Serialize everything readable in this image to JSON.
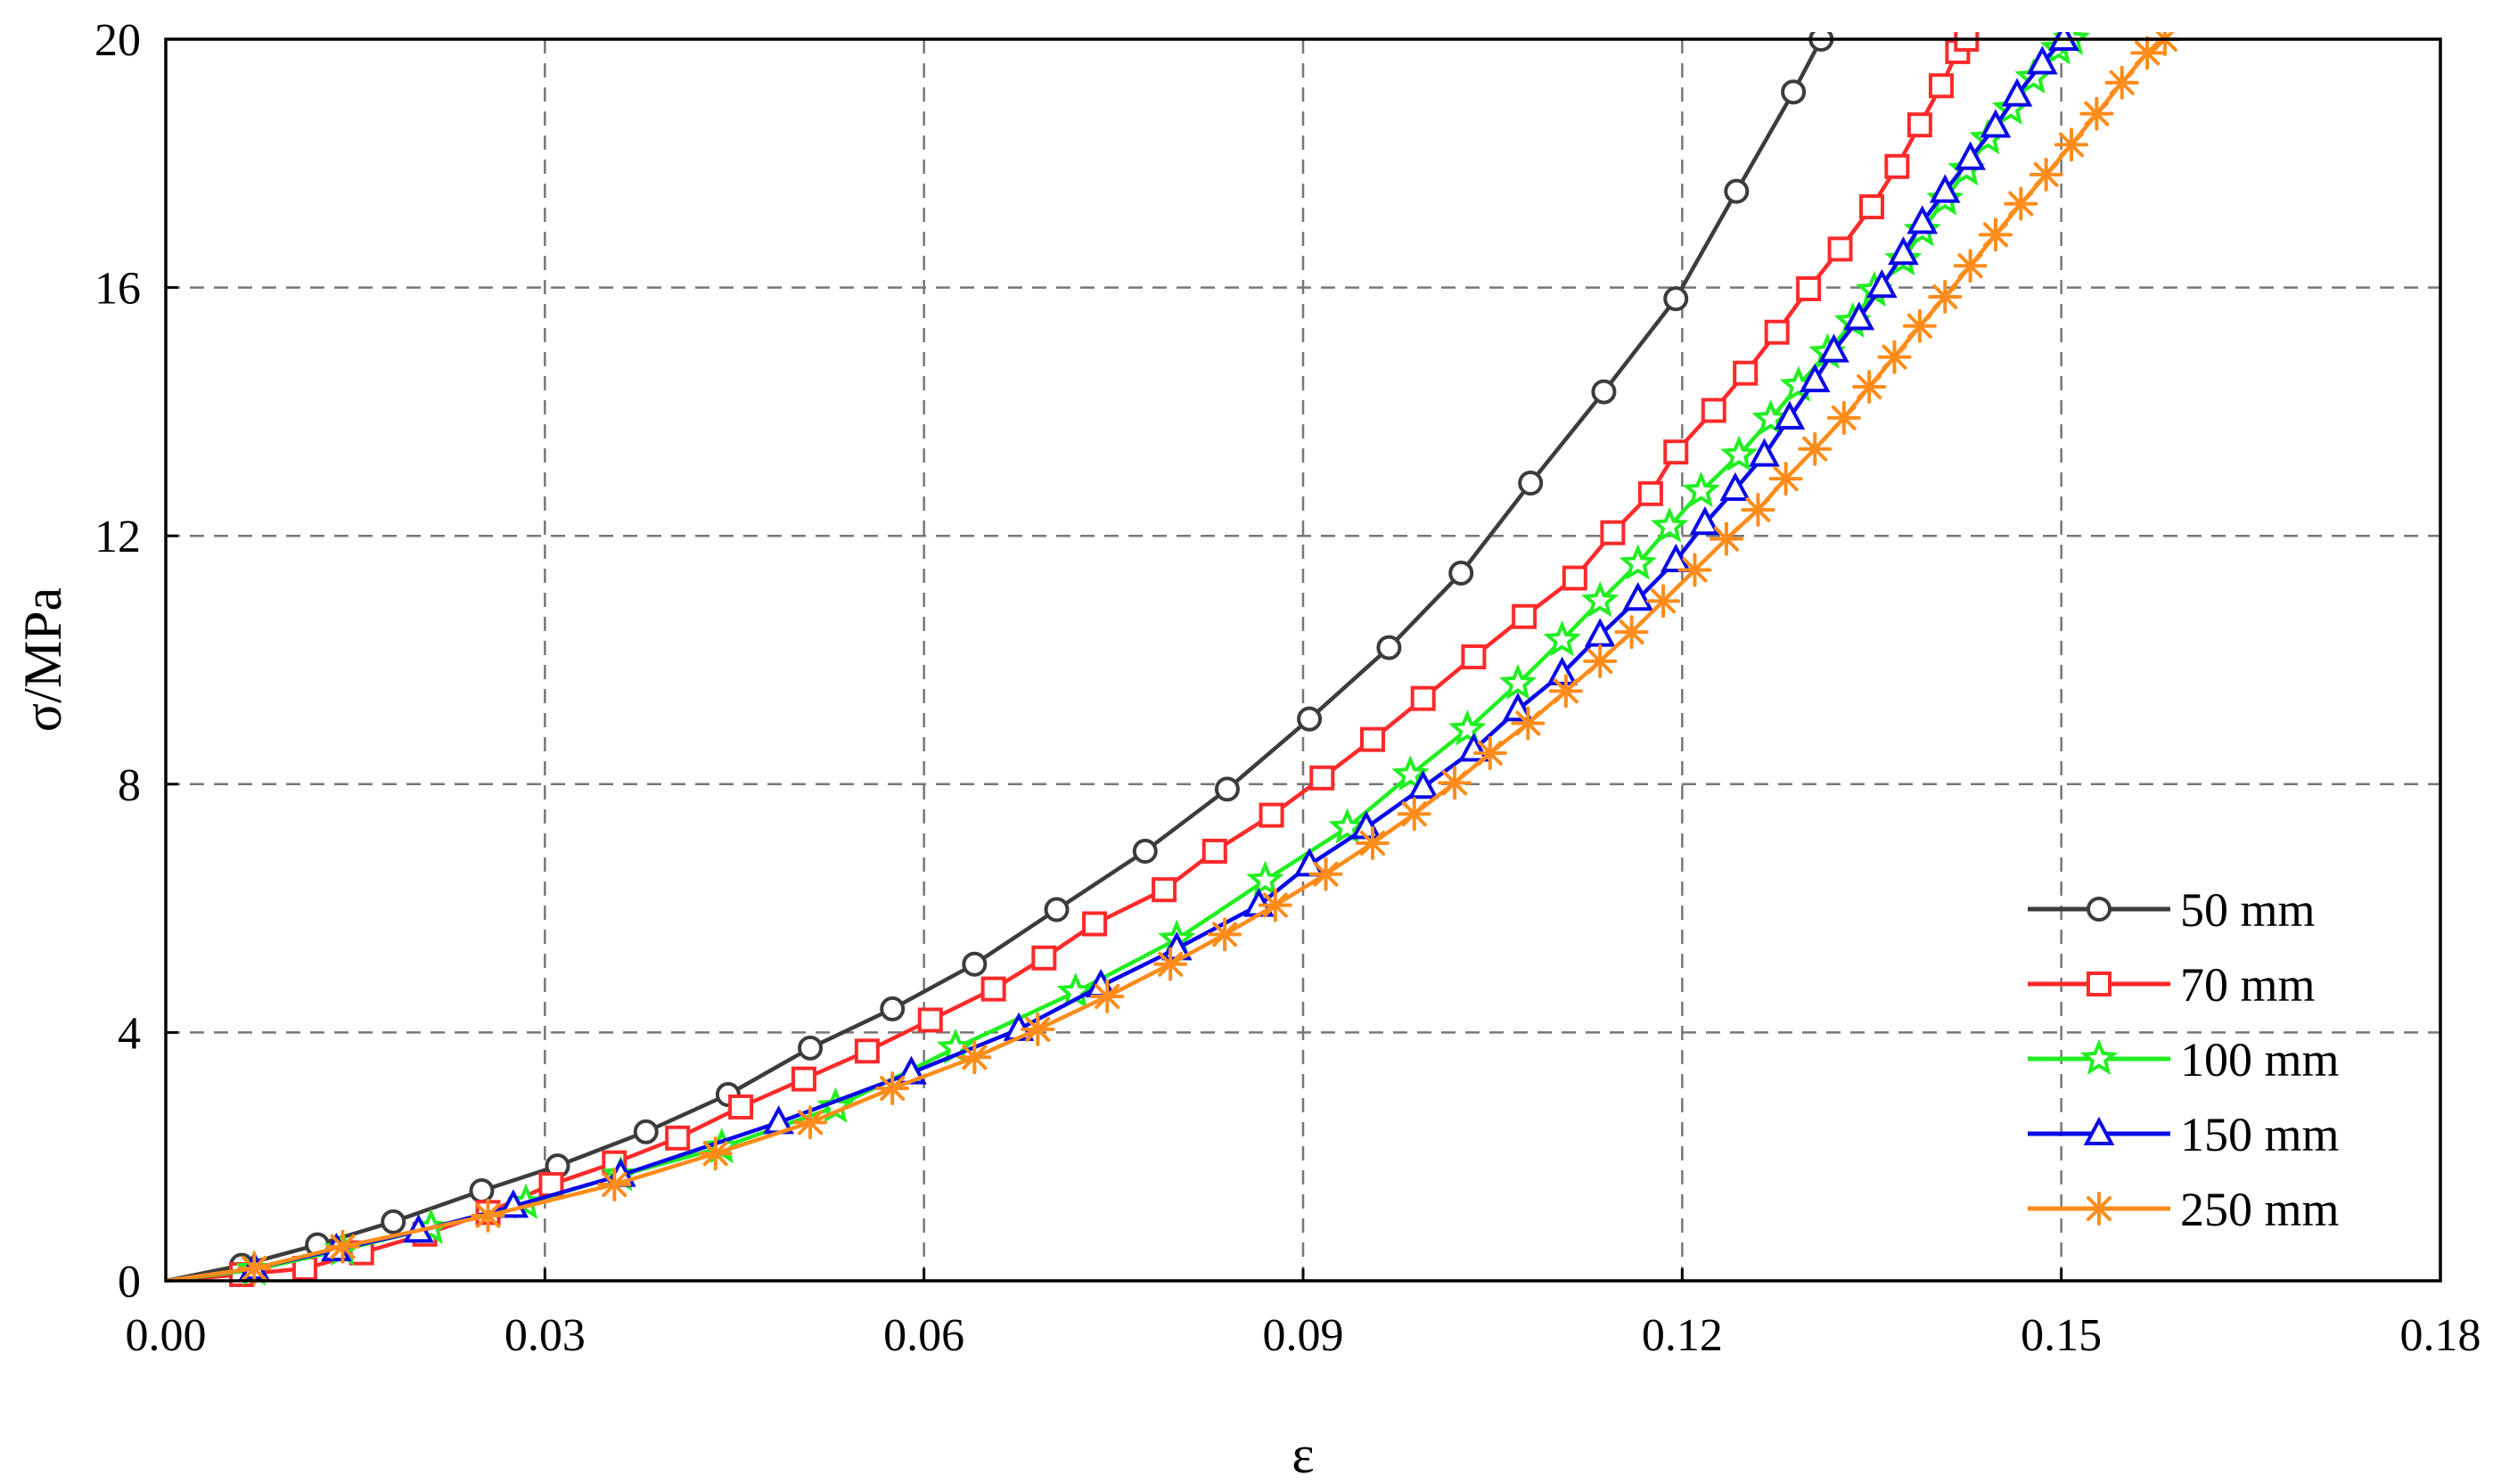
{
  "chart_data": {
    "type": "line",
    "title": "",
    "xlabel": "ε",
    "ylabel": "σ/MPa",
    "xlim": [
      0,
      0.18
    ],
    "ylim": [
      0,
      20
    ],
    "x_ticks": [
      0,
      0.03,
      0.06,
      0.09,
      0.12,
      0.15,
      0.18
    ],
    "x_tick_labels": [
      "0.00",
      "0.03",
      "0.06",
      "0.09",
      "0.12",
      "0.15",
      "0.18"
    ],
    "y_ticks": [
      0,
      4,
      8,
      12,
      16,
      20
    ],
    "y_tick_labels": [
      "0",
      "4",
      "8",
      "12",
      "16",
      "20"
    ],
    "grid": true,
    "legend_position": "bottom-right",
    "series": [
      {
        "name": "50  mm",
        "color": "#3c3c3c",
        "marker": "circle",
        "points": [
          [
            0,
            0
          ],
          [
            0.006,
            0.25
          ],
          [
            0.012,
            0.58
          ],
          [
            0.018,
            0.95
          ],
          [
            0.025,
            1.45
          ],
          [
            0.031,
            1.85
          ],
          [
            0.038,
            2.4
          ],
          [
            0.0445,
            3.0
          ],
          [
            0.051,
            3.75
          ],
          [
            0.0575,
            4.38
          ],
          [
            0.064,
            5.1
          ],
          [
            0.0705,
            5.98
          ],
          [
            0.0775,
            6.92
          ],
          [
            0.084,
            7.92
          ],
          [
            0.0905,
            9.05
          ],
          [
            0.0968,
            10.2
          ],
          [
            0.1025,
            11.4
          ],
          [
            0.108,
            12.85
          ],
          [
            0.1138,
            14.32
          ],
          [
            0.1195,
            15.82
          ],
          [
            0.1243,
            17.55
          ],
          [
            0.1288,
            19.15
          ],
          [
            0.131,
            20.0
          ]
        ]
      },
      {
        "name": "70  mm",
        "color": "#ff2a2a",
        "marker": "square",
        "points": [
          [
            0,
            0
          ],
          [
            0.006,
            0.1
          ],
          [
            0.011,
            0.2
          ],
          [
            0.0155,
            0.45
          ],
          [
            0.0205,
            0.75
          ],
          [
            0.0255,
            1.1
          ],
          [
            0.0305,
            1.55
          ],
          [
            0.0355,
            1.9
          ],
          [
            0.0405,
            2.3
          ],
          [
            0.0455,
            2.8
          ],
          [
            0.0505,
            3.25
          ],
          [
            0.0555,
            3.7
          ],
          [
            0.0605,
            4.2
          ],
          [
            0.0655,
            4.7
          ],
          [
            0.0695,
            5.2
          ],
          [
            0.0735,
            5.75
          ],
          [
            0.079,
            6.3
          ],
          [
            0.083,
            6.92
          ],
          [
            0.0875,
            7.5
          ],
          [
            0.0915,
            8.1
          ],
          [
            0.0955,
            8.72
          ],
          [
            0.0995,
            9.38
          ],
          [
            0.1035,
            10.05
          ],
          [
            0.1075,
            10.7
          ],
          [
            0.1115,
            11.32
          ],
          [
            0.1145,
            12.05
          ],
          [
            0.1175,
            12.68
          ],
          [
            0.1195,
            13.35
          ],
          [
            0.1225,
            14.02
          ],
          [
            0.125,
            14.62
          ],
          [
            0.1275,
            15.28
          ],
          [
            0.13,
            15.98
          ],
          [
            0.1325,
            16.62
          ],
          [
            0.135,
            17.3
          ],
          [
            0.137,
            17.95
          ],
          [
            0.1388,
            18.62
          ],
          [
            0.1405,
            19.25
          ],
          [
            0.1418,
            19.8
          ],
          [
            0.1425,
            20.0
          ]
        ]
      },
      {
        "name": "100  mm",
        "color": "#22ee22",
        "marker": "star",
        "points": [
          [
            0,
            0
          ],
          [
            0.007,
            0.18
          ],
          [
            0.014,
            0.5
          ],
          [
            0.021,
            0.85
          ],
          [
            0.0285,
            1.25
          ],
          [
            0.036,
            1.7
          ],
          [
            0.044,
            2.15
          ],
          [
            0.053,
            2.8
          ],
          [
            0.0625,
            3.75
          ],
          [
            0.072,
            4.65
          ],
          [
            0.08,
            5.5
          ],
          [
            0.087,
            6.45
          ],
          [
            0.0935,
            7.3
          ],
          [
            0.0985,
            8.15
          ],
          [
            0.103,
            8.88
          ],
          [
            0.107,
            9.62
          ],
          [
            0.1105,
            10.32
          ],
          [
            0.1135,
            10.95
          ],
          [
            0.1165,
            11.55
          ],
          [
            0.119,
            12.15
          ],
          [
            0.1215,
            12.72
          ],
          [
            0.1245,
            13.3
          ],
          [
            0.127,
            13.88
          ],
          [
            0.1292,
            14.42
          ],
          [
            0.1315,
            14.95
          ],
          [
            0.1335,
            15.45
          ],
          [
            0.1352,
            15.95
          ],
          [
            0.1375,
            16.45
          ],
          [
            0.139,
            16.92
          ],
          [
            0.1408,
            17.42
          ],
          [
            0.1425,
            17.9
          ],
          [
            0.1442,
            18.4
          ],
          [
            0.146,
            18.88
          ],
          [
            0.1478,
            19.38
          ],
          [
            0.1498,
            19.85
          ],
          [
            0.1508,
            20.0
          ]
        ]
      },
      {
        "name": "150  mm",
        "color": "#0a0ae6",
        "marker": "triangle",
        "points": [
          [
            0,
            0
          ],
          [
            0.007,
            0.2
          ],
          [
            0.0135,
            0.5
          ],
          [
            0.02,
            0.8
          ],
          [
            0.0275,
            1.2
          ],
          [
            0.036,
            1.7
          ],
          [
            0.0485,
            2.55
          ],
          [
            0.059,
            3.35
          ],
          [
            0.0675,
            4.05
          ],
          [
            0.074,
            4.75
          ],
          [
            0.08,
            5.35
          ],
          [
            0.0865,
            6.05
          ],
          [
            0.0905,
            6.7
          ],
          [
            0.095,
            7.3
          ],
          [
            0.0995,
            7.95
          ],
          [
            0.1035,
            8.55
          ],
          [
            0.107,
            9.2
          ],
          [
            0.1105,
            9.78
          ],
          [
            0.1135,
            10.4
          ],
          [
            0.1165,
            10.98
          ],
          [
            0.1195,
            11.6
          ],
          [
            0.1218,
            12.2
          ],
          [
            0.1242,
            12.75
          ],
          [
            0.1265,
            13.3
          ],
          [
            0.1285,
            13.9
          ],
          [
            0.1305,
            14.5
          ],
          [
            0.132,
            14.98
          ],
          [
            0.134,
            15.5
          ],
          [
            0.1358,
            16.02
          ],
          [
            0.1375,
            16.55
          ],
          [
            0.139,
            17.05
          ],
          [
            0.1408,
            17.55
          ],
          [
            0.1428,
            18.08
          ],
          [
            0.1448,
            18.6
          ],
          [
            0.1465,
            19.1
          ],
          [
            0.1485,
            19.62
          ],
          [
            0.1502,
            20.0
          ]
        ]
      },
      {
        "name": "250  mm",
        "color": "#ff8c1a",
        "marker": "asterisk",
        "points": [
          [
            0,
            0
          ],
          [
            0.007,
            0.2
          ],
          [
            0.014,
            0.55
          ],
          [
            0.0255,
            1.05
          ],
          [
            0.0355,
            1.55
          ],
          [
            0.0435,
            2.05
          ],
          [
            0.051,
            2.55
          ],
          [
            0.0575,
            3.1
          ],
          [
            0.064,
            3.6
          ],
          [
            0.069,
            4.05
          ],
          [
            0.0745,
            4.58
          ],
          [
            0.0795,
            5.1
          ],
          [
            0.0838,
            5.58
          ],
          [
            0.0878,
            6.05
          ],
          [
            0.0918,
            6.55
          ],
          [
            0.0955,
            7.05
          ],
          [
            0.0988,
            7.52
          ],
          [
            0.102,
            8.02
          ],
          [
            0.1048,
            8.5
          ],
          [
            0.1078,
            8.98
          ],
          [
            0.1108,
            9.5
          ],
          [
            0.1135,
            9.98
          ],
          [
            0.116,
            10.45
          ],
          [
            0.1185,
            10.95
          ],
          [
            0.121,
            11.45
          ],
          [
            0.1235,
            11.95
          ],
          [
            0.126,
            12.42
          ],
          [
            0.1282,
            12.92
          ],
          [
            0.1305,
            13.4
          ],
          [
            0.1328,
            13.9
          ],
          [
            0.1348,
            14.4
          ],
          [
            0.1368,
            14.88
          ],
          [
            0.1388,
            15.38
          ],
          [
            0.1408,
            15.85
          ],
          [
            0.1428,
            16.35
          ],
          [
            0.1448,
            16.85
          ],
          [
            0.1468,
            17.35
          ],
          [
            0.1488,
            17.82
          ],
          [
            0.1508,
            18.3
          ],
          [
            0.1528,
            18.8
          ],
          [
            0.1548,
            19.3
          ],
          [
            0.1568,
            19.78
          ],
          [
            0.1582,
            20.0
          ]
        ]
      }
    ]
  }
}
